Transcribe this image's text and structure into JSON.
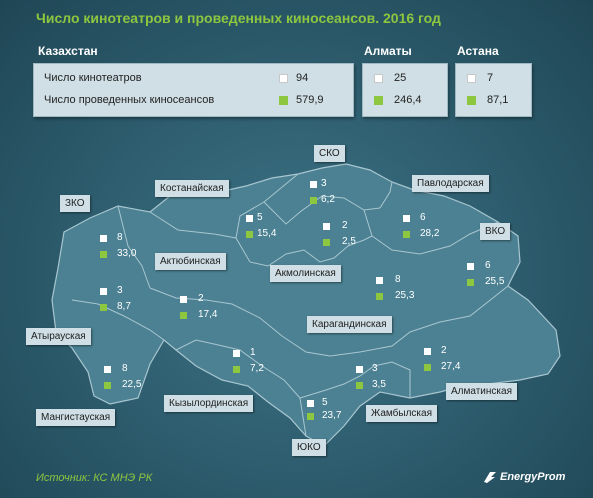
{
  "title": "Число кинотеатров и проведенных киносеансов. 2016 год",
  "summary": {
    "kazakhstan": {
      "name": "Казахстан",
      "row1_label": "Число кинотеатров",
      "row2_label": "Число проведенных киносеансов",
      "cinemas": "94",
      "sessions": "579,9"
    },
    "almaty": {
      "name": "Алматы",
      "cinemas": "25",
      "sessions": "246,4"
    },
    "astana": {
      "name": "Астана",
      "cinemas": "7",
      "sessions": "87,1"
    }
  },
  "regions": {
    "sko": {
      "name": "СКО",
      "cinemas": "3",
      "sessions": "6,2"
    },
    "pavlodar": {
      "name": "Павлодарская",
      "cinemas": "6",
      "sessions": "28,2"
    },
    "kostanay": {
      "name": "Костанайская",
      "cinemas": "5",
      "sessions": "15,4"
    },
    "zko": {
      "name": "ЗКО",
      "cinemas": "8",
      "sessions": "33,0"
    },
    "akmola": {
      "name": "Акмолинская",
      "cinemas": "2",
      "sessions": "2,5"
    },
    "vko": {
      "name": "ВКО",
      "cinemas": "6",
      "sessions": "25,5"
    },
    "aktobe": {
      "name": "Актюбинская",
      "cinemas": "2",
      "sessions": "17,4"
    },
    "karaganda": {
      "name": "Карагандинская",
      "cinemas": "8",
      "sessions": "25,3"
    },
    "atyrau": {
      "name": "Атырауская",
      "cinemas": "3",
      "sessions": "8,7"
    },
    "mangistau": {
      "name": "Мангистауская",
      "cinemas": "8",
      "sessions": "22,5"
    },
    "kyzylorda": {
      "name": "Кызылординская",
      "cinemas": "1",
      "sessions": "7,2"
    },
    "zhambyl": {
      "name": "Жамбылская",
      "cinemas": "3",
      "sessions": "3,5"
    },
    "almaty_region": {
      "name": "Алматинская",
      "cinemas": "2",
      "sessions": "27,4"
    },
    "uko": {
      "name": "ЮКО",
      "cinemas": "5",
      "sessions": "23,7"
    }
  },
  "colors": {
    "cinemas": "#ffffff",
    "sessions": "#8dc63f",
    "title": "#8dc63f"
  },
  "footer": {
    "source": "Источник: КС МНЭ РК",
    "brand": "EnergyProm"
  }
}
